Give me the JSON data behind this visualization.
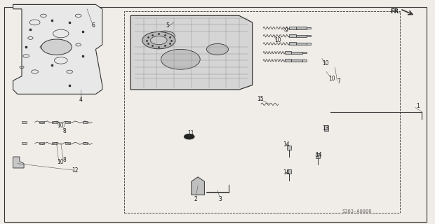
{
  "bg_color": "#f0ede8",
  "line_color": "#333333",
  "text_color": "#222222",
  "fig_width": 6.2,
  "fig_height": 3.2,
  "dpi": 100,
  "diagram_code": "S303-A0800",
  "fr_label": "FR."
}
